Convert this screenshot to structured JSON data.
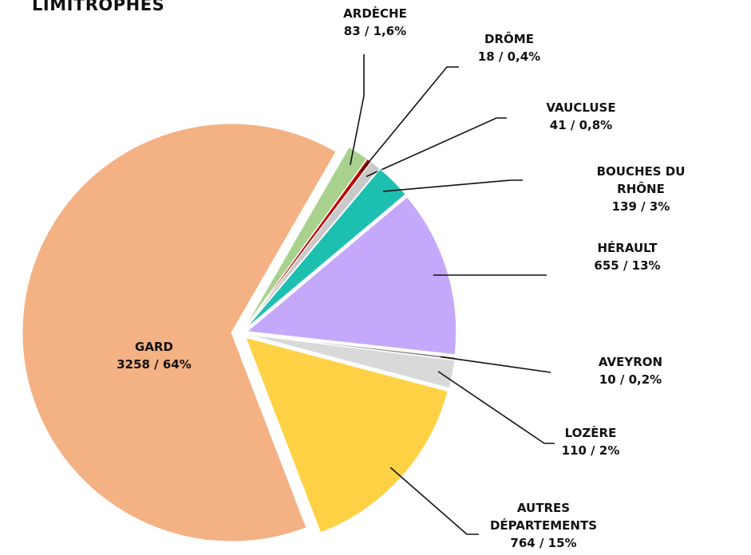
{
  "chart_data": {
    "type": "pie",
    "title": "LIMITROPHES",
    "categories": [
      "ARDÈCHE",
      "DRÔME",
      "VAUCLUSE",
      "BOUCHES DU RHÔNE",
      "HÉRAULT",
      "AVEYRON",
      "LOZÈRE",
      "AUTRES DÉPARTEMENTS",
      "GARD"
    ],
    "values": [
      83,
      18,
      41,
      139,
      655,
      10,
      110,
      764,
      3258
    ],
    "value_labels": [
      "83  /  1,6%",
      "18  /  0,4%",
      "41  /  0,8%",
      "139  /  3%",
      "655  /  13%",
      "10  /  0,2%",
      "110  /  2%",
      "764  /  15%",
      "3258  /  64%"
    ],
    "colors": [
      "#a9d18e",
      "#c00000",
      "#c9c9c9",
      "#1dbfb1",
      "#c4a8fb",
      "#8c8c8c",
      "#d9d9d9",
      "#ffd145",
      "#f4b183"
    ]
  }
}
